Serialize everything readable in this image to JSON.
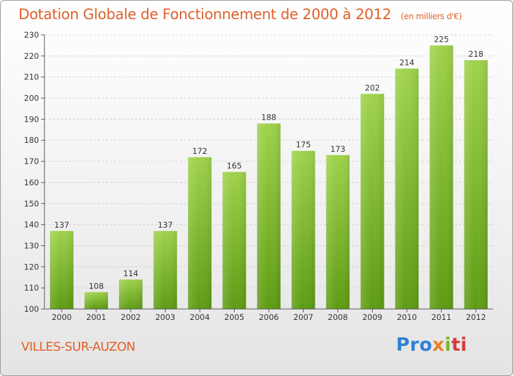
{
  "header": {
    "title": "Dotation Globale de Fonctionnement de 2000 à 2012",
    "subtitle": "(en milliers d'€)"
  },
  "footer": {
    "commune": "VILLES-SUR-AUZON",
    "logo_parts": [
      "Pro",
      "x",
      "i",
      "ti"
    ]
  },
  "colors": {
    "title": "#e0602a",
    "bar_top": "#9fd24c",
    "bar_bottom": "#5e9c14",
    "grid": "#cfcfcf"
  },
  "chart_data": {
    "type": "bar",
    "categories": [
      "2000",
      "2001",
      "2002",
      "2003",
      "2004",
      "2005",
      "2006",
      "2007",
      "2008",
      "2009",
      "2010",
      "2011",
      "2012"
    ],
    "values": [
      137,
      108,
      114,
      137,
      172,
      165,
      188,
      175,
      173,
      202,
      214,
      225,
      218
    ],
    "title": "Dotation Globale de Fonctionnement de 2000 à 2012",
    "subtitle": "(en milliers d'€)",
    "ylim": [
      100,
      230
    ],
    "yticks": [
      100,
      110,
      120,
      130,
      140,
      150,
      160,
      170,
      180,
      190,
      200,
      210,
      220,
      230
    ],
    "grid": true,
    "legend": "none"
  }
}
